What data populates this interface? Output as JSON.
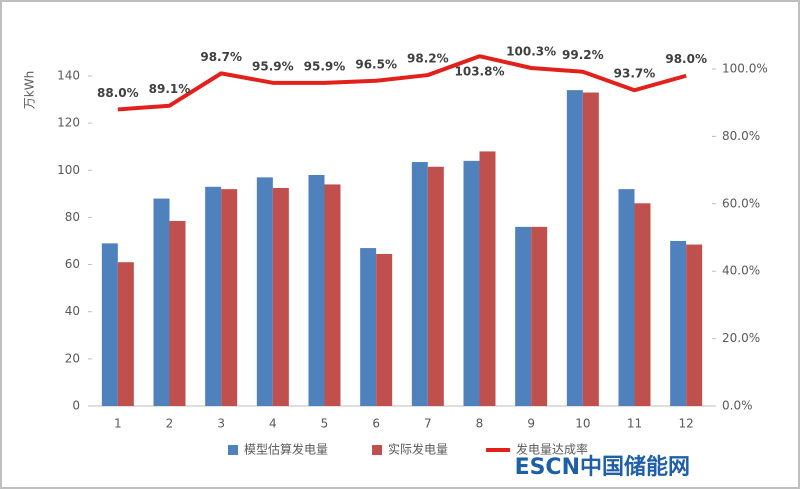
{
  "chart_data": {
    "type": "bar-line",
    "y_label": "万kWh",
    "watermark": "ESCN中国储能网",
    "categories": [
      "1",
      "2",
      "3",
      "4",
      "5",
      "6",
      "7",
      "8",
      "9",
      "10",
      "11",
      "12"
    ],
    "series": [
      {
        "name": "模型估算发电量",
        "type": "bar",
        "color": "#4f81bd",
        "values": [
          69,
          88,
          93,
          97,
          98,
          67,
          103.5,
          104,
          76,
          134,
          92,
          70
        ]
      },
      {
        "name": "实际发电量",
        "type": "bar",
        "color": "#c0504d",
        "values": [
          61,
          78.5,
          92,
          92.5,
          94,
          64.5,
          101.5,
          108,
          76,
          133,
          86,
          68.5
        ]
      },
      {
        "name": "发电量达成率",
        "type": "line",
        "axis": "y2",
        "color": "#e3211c",
        "values": [
          88.0,
          89.1,
          98.7,
          95.9,
          95.9,
          96.5,
          98.2,
          103.8,
          100.3,
          99.2,
          93.7,
          98.0
        ],
        "value_labels": [
          "88.0%",
          "89.1%",
          "98.7%",
          "95.9%",
          "95.9%",
          "96.5%",
          "98.2%",
          "103.8%",
          "100.3%",
          "99.2%",
          "93.7%",
          "98.0%"
        ]
      }
    ],
    "ylim": [
      0,
      140
    ],
    "yticks": [
      0,
      20,
      40,
      60,
      80,
      100,
      120,
      140
    ],
    "y2lim": [
      0,
      100
    ],
    "y2ticks": [
      {
        "value": 0,
        "label": "0.0%"
      },
      {
        "value": 20,
        "label": "20.0%"
      },
      {
        "value": 40,
        "label": "40.0%"
      },
      {
        "value": 60,
        "label": "60.0%"
      },
      {
        "value": 80,
        "label": "80.0%"
      },
      {
        "value": 100,
        "label": "100.0%"
      }
    ],
    "grid": false,
    "legend": "bottom"
  }
}
